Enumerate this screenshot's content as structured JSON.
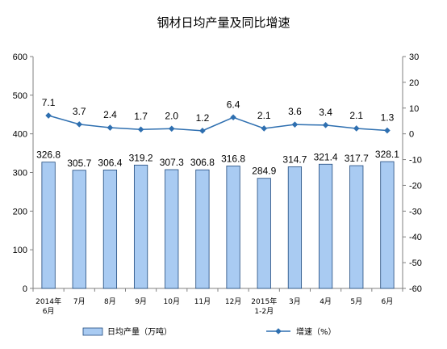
{
  "chart_data": {
    "type": "bar",
    "title": "钢材日均产量及同比增速",
    "categories": [
      [
        "2014年",
        "6月"
      ],
      [
        "7月"
      ],
      [
        "8月"
      ],
      [
        "9月"
      ],
      [
        "10月"
      ],
      [
        "11月"
      ],
      [
        "12月"
      ],
      [
        "2015年",
        "1-2月"
      ],
      [
        "3月"
      ],
      [
        "4月"
      ],
      [
        "5月"
      ],
      [
        "6月"
      ]
    ],
    "series": [
      {
        "name": "日均产量（万吨）",
        "kind": "bar",
        "axis": "left",
        "color": "#a9cbf2",
        "edge_color": "#1f497d",
        "values": [
          326.8,
          305.7,
          306.4,
          319.2,
          307.3,
          306.8,
          316.8,
          284.9,
          314.7,
          321.4,
          317.7,
          328.1
        ],
        "labels": [
          "326.8",
          "305.7",
          "306.4",
          "319.2",
          "307.3",
          "306.8",
          "316.8",
          "284.9",
          "314.7",
          "321.4",
          "317.7",
          "328.1"
        ]
      },
      {
        "name": "增速（%）",
        "kind": "line",
        "axis": "right",
        "color": "#2e6fb0",
        "marker": "diamond",
        "values": [
          7.1,
          3.7,
          2.4,
          1.7,
          2.0,
          1.2,
          6.4,
          2.1,
          3.6,
          3.4,
          2.1,
          1.3
        ],
        "labels": [
          "7.1",
          "3.7",
          "2.4",
          "1.7",
          "2.0",
          "1.2",
          "6.4",
          "2.1",
          "3.6",
          "3.4",
          "2.1",
          "1.3"
        ]
      }
    ],
    "y_left": {
      "min": 0,
      "max": 600,
      "ticks": [
        0,
        100,
        200,
        300,
        400,
        500,
        600
      ],
      "tick_labels": [
        "0",
        "100",
        "200",
        "300",
        "400",
        "500",
        "600"
      ]
    },
    "y_right": {
      "min": -60,
      "max": 30,
      "ticks": [
        -60,
        -50,
        -40,
        -30,
        -20,
        -10,
        0,
        10,
        20,
        30
      ],
      "tick_labels": [
        "-60",
        "-50",
        "-40",
        "-30",
        "-20",
        "-10",
        "0",
        "10",
        "20",
        "30"
      ]
    },
    "grid": false,
    "legend": {
      "position": "bottom",
      "items": [
        "日均产量（万吨）",
        "增速（%）"
      ]
    }
  }
}
